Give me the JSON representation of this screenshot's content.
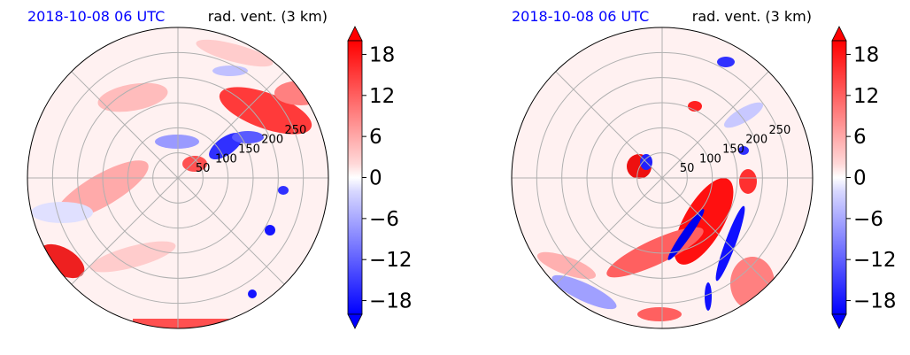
{
  "chart_data": [
    {
      "type": "heatmap",
      "title_left": "2018-10-08 06 UTC",
      "title_right": "rad. vent. (3 km)",
      "projection": "polar",
      "radial_ticks": [
        "50",
        "100",
        "150",
        "200",
        "250"
      ],
      "radial_tick_values": [
        50,
        100,
        150,
        200,
        250
      ],
      "rmax": 300,
      "colorbar": {
        "ticks": [
          18,
          12,
          6,
          0,
          -6,
          -12,
          -18
        ],
        "tick_labels": [
          "18",
          "12",
          "6",
          "0",
          "−6",
          "−12",
          "−18"
        ],
        "range": [
          -20,
          20
        ],
        "extend": "both",
        "colormap": "bwr"
      },
      "colors": {
        "positive": "#ff0000",
        "negative": "#0000ff",
        "neutral": "#ffffff",
        "title": "#0000ff"
      }
    },
    {
      "type": "heatmap",
      "title_left": "2018-10-08 06 UTC",
      "title_right": "rad. vent. (3 km)",
      "projection": "polar",
      "radial_ticks": [
        "50",
        "100",
        "150",
        "200",
        "250"
      ],
      "radial_tick_values": [
        50,
        100,
        150,
        200,
        250
      ],
      "rmax": 300,
      "colorbar": {
        "ticks": [
          18,
          12,
          6,
          0,
          -6,
          -12,
          -18
        ],
        "tick_labels": [
          "18",
          "12",
          "6",
          "0",
          "−6",
          "−12",
          "−18"
        ],
        "range": [
          -20,
          20
        ],
        "extend": "both",
        "colormap": "bwr"
      },
      "colors": {
        "positive": "#ff0000",
        "negative": "#0000ff",
        "neutral": "#ffffff",
        "title": "#0000ff"
      }
    }
  ]
}
